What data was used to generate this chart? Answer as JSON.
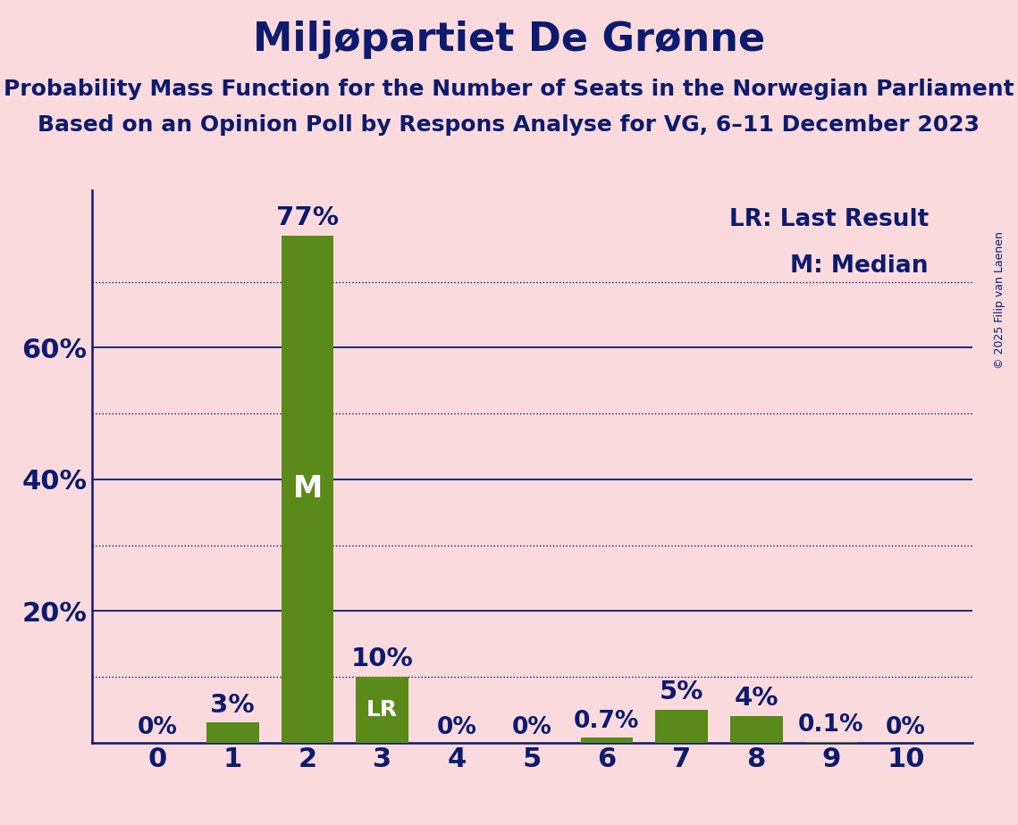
{
  "title": "Miljøpartiet De Grønne",
  "subtitle1": "Probability Mass Function for the Number of Seats in the Norwegian Parliament",
  "subtitle2": "Based on an Opinion Poll by Respons Analyse for VG, 6–11 December 2023",
  "copyright": "© 2025 Filip van Laenen",
  "categories": [
    0,
    1,
    2,
    3,
    4,
    5,
    6,
    7,
    8,
    9,
    10
  ],
  "values": [
    0.0,
    3.0,
    77.0,
    10.0,
    0.0,
    0.0,
    0.7,
    5.0,
    4.0,
    0.1,
    0.0
  ],
  "labels": [
    "0%",
    "3%",
    "77%",
    "10%",
    "0%",
    "0%",
    "0.7%",
    "5%",
    "4%",
    "0.1%",
    "0%"
  ],
  "bar_color": "#5a8a1a",
  "background_color": "#fadadd",
  "text_color": "#0d1a6e",
  "median_bar": 2,
  "lr_bar": 3,
  "median_label": "M",
  "lr_label": "LR",
  "legend_lr": "LR: Last Result",
  "legend_m": "M: Median",
  "ylim": [
    0,
    84
  ],
  "yticks": [
    20,
    40,
    60
  ],
  "ytick_labels": [
    "20%",
    "40%",
    "60%"
  ],
  "solid_grid": [
    20,
    40,
    60
  ],
  "dotted_grid": [
    10,
    30,
    50,
    70
  ],
  "grid_color": "#0d1a6e",
  "axis_color": "#0d1a6e",
  "title_fontsize": 32,
  "subtitle_fontsize": 18,
  "tick_fontsize": 22,
  "legend_fontsize": 19,
  "bar_label_fontsize": 21,
  "bar_label_fontsize_small": 19,
  "bar_width": 0.7,
  "copyright_fontsize": 9,
  "median_label_fontsize": 24,
  "lr_label_fontsize": 18
}
